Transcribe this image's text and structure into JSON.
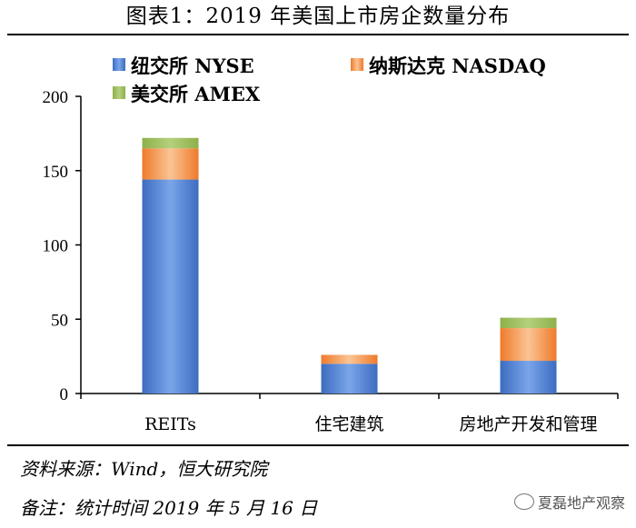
{
  "title": "图表1：2019 年美国上市房企数量分布",
  "source": "资料来源：Wind，恒大研究院",
  "remark": "备注：统计时间 2019 年 5 月 16 日",
  "watermark": "夏磊地产观察",
  "chart_data": {
    "type": "bar",
    "stacked": true,
    "categories": [
      "REITs",
      "住宅建筑",
      "房地产开发和管理"
    ],
    "series": [
      {
        "name": "纽交所 NYSE",
        "values": [
          144,
          20,
          22
        ],
        "color": "#4f81d4"
      },
      {
        "name": "纳斯达克 NASDAQ",
        "values": [
          21,
          6,
          22
        ],
        "color": "#f79646"
      },
      {
        "name": "美交所 AMEX",
        "values": [
          7,
          0,
          7
        ],
        "color": "#9bbb59"
      }
    ],
    "ylim": [
      0,
      200
    ],
    "yticks": [
      "0",
      "50",
      "100",
      "150",
      "200"
    ],
    "grid": false,
    "legend_position": "top"
  }
}
